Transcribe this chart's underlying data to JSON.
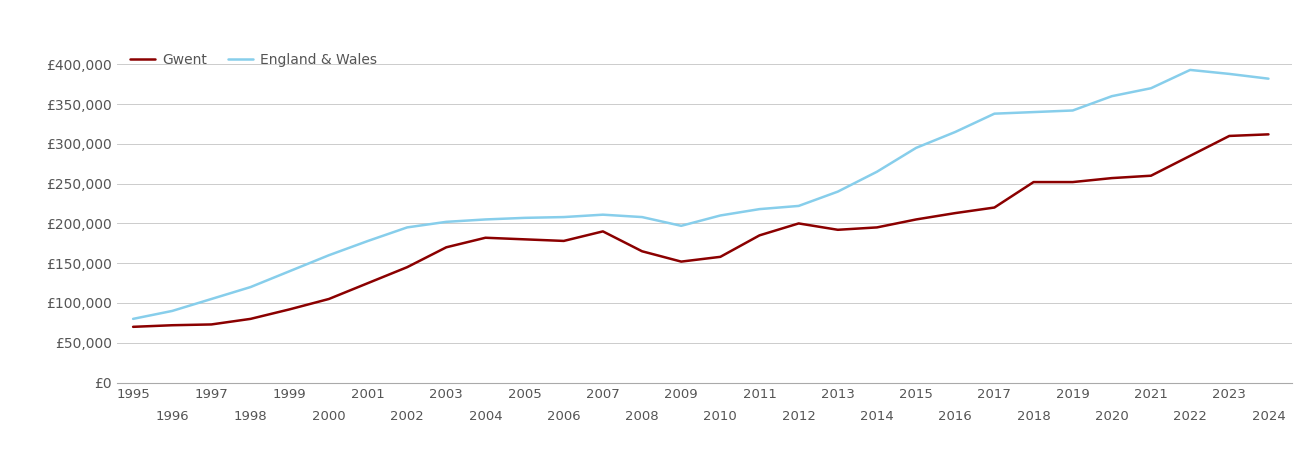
{
  "gwent_years": [
    1995,
    1996,
    1997,
    1998,
    1999,
    2000,
    2001,
    2002,
    2003,
    2004,
    2005,
    2006,
    2007,
    2008,
    2009,
    2010,
    2011,
    2012,
    2013,
    2014,
    2015,
    2016,
    2017,
    2018,
    2019,
    2020,
    2021,
    2022,
    2023,
    2024
  ],
  "gwent_values": [
    70000,
    72000,
    73000,
    80000,
    92000,
    105000,
    125000,
    145000,
    170000,
    182000,
    180000,
    178000,
    190000,
    165000,
    152000,
    158000,
    185000,
    200000,
    192000,
    195000,
    205000,
    213000,
    220000,
    252000,
    252000,
    257000,
    260000,
    285000,
    310000,
    312000
  ],
  "ew_years": [
    1995,
    1996,
    1997,
    1998,
    1999,
    2000,
    2001,
    2002,
    2003,
    2004,
    2005,
    2006,
    2007,
    2008,
    2009,
    2010,
    2011,
    2012,
    2013,
    2014,
    2015,
    2016,
    2017,
    2018,
    2019,
    2020,
    2021,
    2022,
    2023,
    2024
  ],
  "ew_values": [
    80000,
    90000,
    105000,
    120000,
    140000,
    160000,
    178000,
    195000,
    202000,
    205000,
    207000,
    208000,
    211000,
    208000,
    197000,
    210000,
    218000,
    222000,
    240000,
    265000,
    295000,
    315000,
    338000,
    340000,
    342000,
    360000,
    370000,
    393000,
    388000,
    382000
  ],
  "gwent_color": "#8B0000",
  "ew_color": "#87CEEB",
  "gwent_label": "Gwent",
  "ew_label": "England & Wales",
  "ylim": [
    0,
    430000
  ],
  "yticks": [
    0,
    50000,
    100000,
    150000,
    200000,
    250000,
    300000,
    350000,
    400000
  ],
  "ytick_labels": [
    "£0",
    "£50,000",
    "£100,000",
    "£150,000",
    "£200,000",
    "£250,000",
    "£300,000",
    "£350,000",
    "£400,000"
  ],
  "xticks_odd": [
    1995,
    1997,
    1999,
    2001,
    2003,
    2005,
    2007,
    2009,
    2011,
    2013,
    2015,
    2017,
    2019,
    2021,
    2023
  ],
  "xticks_even": [
    1996,
    1998,
    2000,
    2002,
    2004,
    2006,
    2008,
    2010,
    2012,
    2014,
    2016,
    2018,
    2020,
    2022,
    2024
  ],
  "line_width": 1.8,
  "bg_color": "#ffffff",
  "grid_color": "#cccccc",
  "minor_grid_color": "#e5e5e5"
}
